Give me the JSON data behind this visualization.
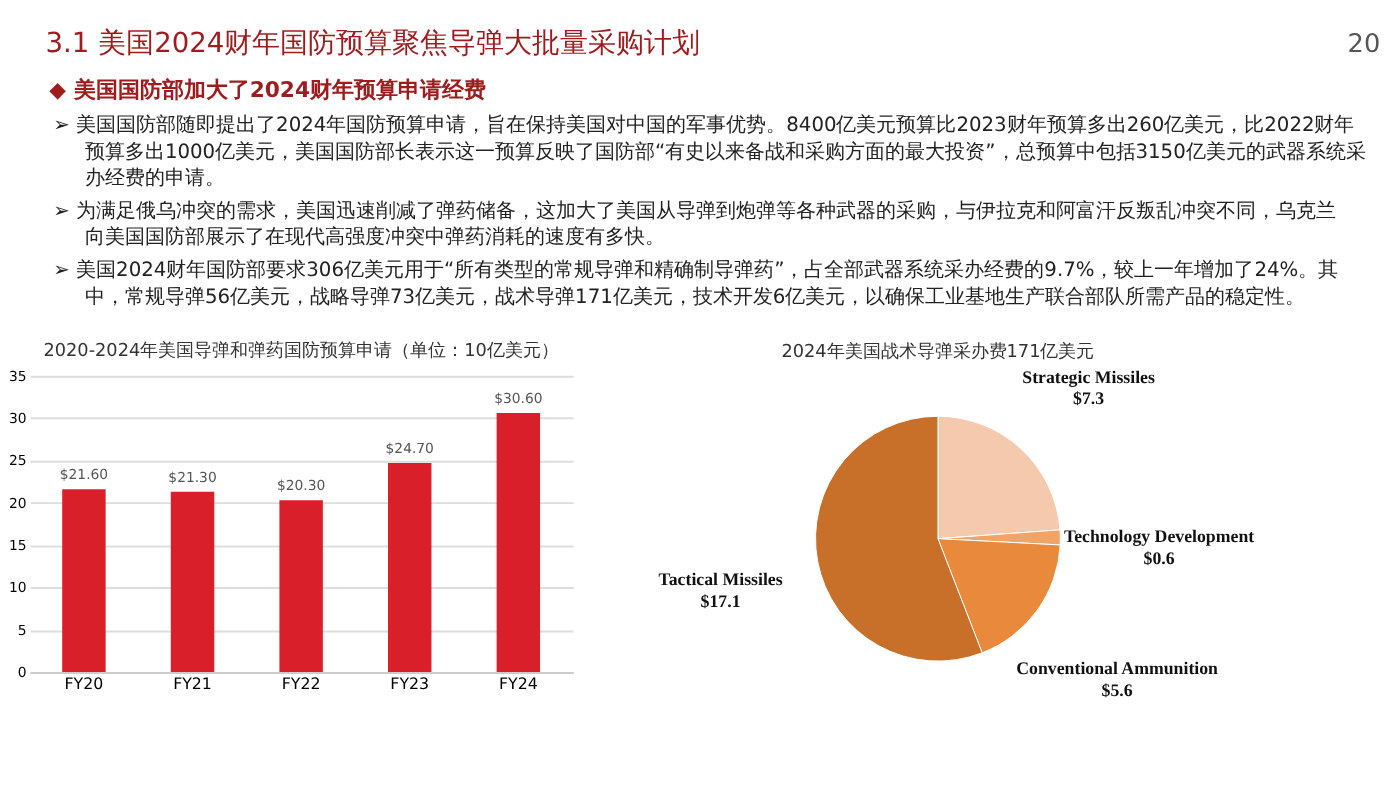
{
  "chart_data": [
    {
      "type": "other",
      "title": "3.1 美国2024财年国防预算聚焦导弹大批量采购计划",
      "annotations": [
        "◆ 美国国防部加大了2024财年预算申请经费",
        "➢ 美国国防部随即提出了2024年国防预算申请，旨在保持美国对中国的军事优势。8400亿美元预算比2023财年预算多出260亿美元，比2022财年预算多出1000亿美元，美国国防部长表示这一预算反映了国防部“有史以来备战和采购方面的最大投资”，总预算中包括3150亿美元的武器系统采办经费的申请。",
        "➢ 为满足俄乌冲突的需求，美国迅速削减了弹药储备，这加大了美国从导弹到炮弹等各种武器的采购，与伊拉克和阿富汗反叛乱冲突不同，乌克兰向美国国防部展示了在现代高强度冲突中弹药消耗的速度有多快。",
        "➢ 美国2024财年国防部要求306亿美元用于“所有类型的常规导弹和精确制导弹药”，占全部武器系统采办经费的9.7%，较上一年增加了24%。其中，常规导弹56亿美元，战略导弹73亿美元，战术导弹171亿美元，技术开发6亿美元，以确保工业基地生产联合部队所需产品的稳定性。",
        "20"
      ]
    },
    {
      "type": "bar",
      "title": "2020-2024年美国导弹和弹药国防预算申请（单位：10亿美元）",
      "categories": [
        "FY20",
        "FY21",
        "FY22",
        "FY23",
        "FY24"
      ],
      "values": [
        21.6,
        21.3,
        20.3,
        24.7,
        30.6
      ],
      "value_labels": [
        "$21.60",
        "$21.30",
        "$20.30",
        "$24.70",
        "$30.60"
      ],
      "color": "#d9202a",
      "ylim": [
        0,
        35
      ],
      "yticks": [
        0,
        5,
        10,
        15,
        20,
        25,
        30,
        35
      ],
      "grid": "y"
    },
    {
      "type": "pie",
      "title": "2024年美国战术导弹采办费171亿美元",
      "categories": [
        "Strategic Missiles",
        "Technology Development",
        "Conventional Ammunition",
        "Tactical Missiles"
      ],
      "values": [
        7.3,
        0.6,
        5.6,
        17.1
      ],
      "value_labels": [
        "$7.3",
        "$0.6",
        "$5.6",
        "$17.1"
      ],
      "colors": [
        "#f5c9ae",
        "#f0a468",
        "#e8893c",
        "#c8702a"
      ]
    }
  ]
}
